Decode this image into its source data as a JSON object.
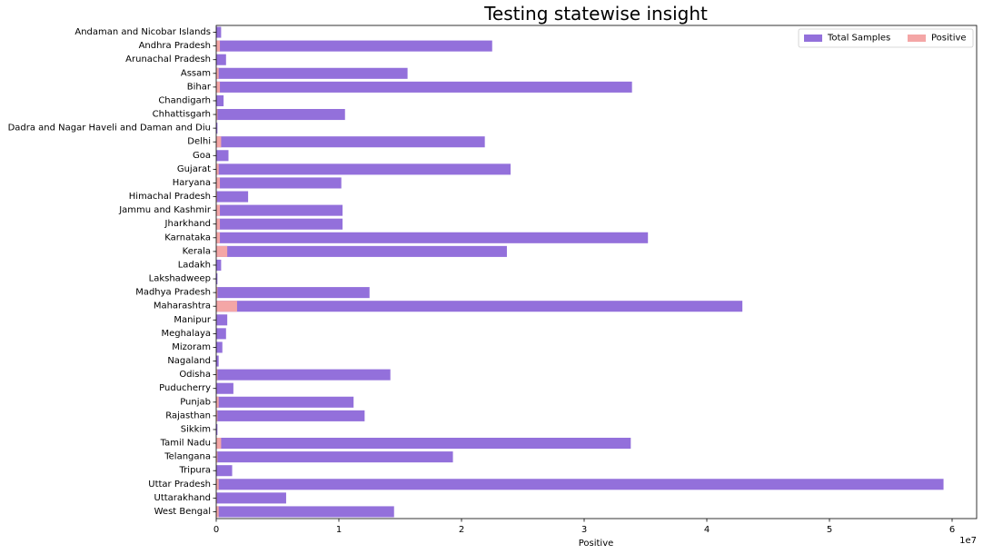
{
  "chart_data": {
    "type": "bar",
    "orientation": "horizontal",
    "title": "Testing statewise insight",
    "xlabel": "Positive",
    "ylabel": "",
    "x_offset_label": "1e7",
    "xlim": [
      0,
      6.2
    ],
    "x_ticks": [
      0,
      1,
      2,
      3,
      4,
      5,
      6
    ],
    "x_tick_labels": [
      "0",
      "1",
      "2",
      "3",
      "4",
      "5",
      "6"
    ],
    "grid": false,
    "legend_position": "top-right",
    "categories": [
      "Andaman and Nicobar Islands",
      "Andhra Pradesh",
      "Arunachal Pradesh",
      "Assam",
      "Bihar",
      "Chandigarh",
      "Chhattisgarh",
      "Dadra and Nagar Haveli and Daman and Diu",
      "Delhi",
      "Goa",
      "Gujarat",
      "Haryana",
      "Himachal Pradesh",
      "Jammu and Kashmir",
      "Jharkhand",
      "Karnataka",
      "Kerala",
      "Ladakh",
      "Lakshadweep",
      "Madhya Pradesh",
      "Maharashtra",
      "Manipur",
      "Meghalaya",
      "Mizoram",
      "Nagaland",
      "Odisha",
      "Puducherry",
      "Punjab",
      "Rajasthan",
      "Sikkim",
      "Tamil Nadu",
      "Telangana",
      "Tripura",
      "Uttar Pradesh",
      "Uttarakhand",
      "West Bengal"
    ],
    "series": [
      {
        "name": "Total Samples",
        "color": "#9370DB",
        "values": [
          0.04,
          2.25,
          0.08,
          1.56,
          3.39,
          0.06,
          1.05,
          0.01,
          2.19,
          0.1,
          2.4,
          1.02,
          0.26,
          1.03,
          1.03,
          3.52,
          2.37,
          0.04,
          0.01,
          1.25,
          4.29,
          0.09,
          0.08,
          0.05,
          0.02,
          1.42,
          0.14,
          1.12,
          1.21,
          0.01,
          3.38,
          1.93,
          0.13,
          5.93,
          0.57,
          1.45
        ]
      },
      {
        "name": "Positive",
        "color": "#F4A6A6",
        "values": [
          0.001,
          0.03,
          0.002,
          0.02,
          0.03,
          0.001,
          0.01,
          0.0003,
          0.04,
          0.002,
          0.02,
          0.03,
          0.006,
          0.03,
          0.03,
          0.03,
          0.09,
          0.001,
          0.0001,
          0.01,
          0.17,
          0.003,
          0.002,
          0.001,
          0.001,
          0.01,
          0.004,
          0.02,
          0.01,
          0.0002,
          0.04,
          0.01,
          0.003,
          0.02,
          0.005,
          0.02
        ]
      }
    ]
  }
}
